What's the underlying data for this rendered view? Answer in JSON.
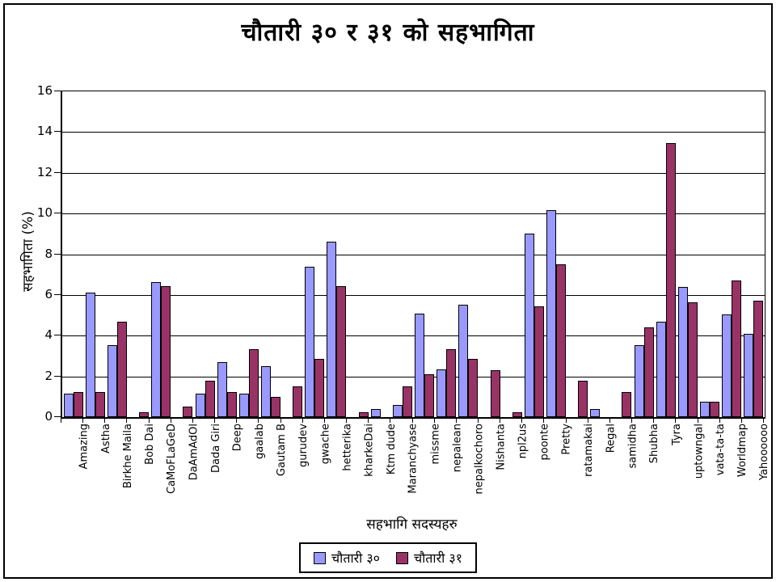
{
  "chart_data": {
    "type": "bar",
    "title": "चौतारी ३० र ३१ को सहभागिता",
    "xlabel": "सहभागि सदस्यहरु",
    "ylabel": "सहभागिता  (%)",
    "ylim": [
      0,
      16
    ],
    "yticks": [
      0,
      2,
      4,
      6,
      8,
      10,
      12,
      14,
      16
    ],
    "grid": true,
    "legend_position": "bottom",
    "categories": [
      "Amazing",
      "Astha",
      "Birkhe Maila",
      "Bob Dai",
      "CaMoFLaGeD",
      "DaAmAdOl",
      "Dada Giri",
      "Deep",
      "gaalab",
      "Gautam B",
      "gurudev",
      "gwache",
      "hetterika",
      "kharkeDai",
      "Ktm dude",
      "Maranchyase",
      "missme",
      "nepalean",
      "nepalkochoro",
      "Nishanta",
      "npl2us",
      "poonte",
      "Pretty",
      "ratamakai",
      "Regal",
      "samidha",
      "Shubha",
      "Tyra",
      "uptowngal",
      "vata-ta-ta",
      "Worldmap",
      "Yahoooooo"
    ],
    "series": [
      {
        "name": "चौतारी ३०",
        "color": "#9999FF",
        "values": [
          1.15,
          6.1,
          3.55,
          0,
          6.65,
          0,
          1.15,
          2.7,
          1.15,
          2.5,
          0,
          7.4,
          8.6,
          0,
          0.4,
          0.6,
          5.1,
          2.35,
          5.5,
          0,
          0,
          9.0,
          10.15,
          0,
          0.4,
          0,
          3.55,
          4.7,
          6.4,
          0.75,
          5.05,
          4.1
        ]
      },
      {
        "name": "चौतारी ३१",
        "color": "#993366",
        "values": [
          1.25,
          1.25,
          4.7,
          0.25,
          6.45,
          0.5,
          1.8,
          1.25,
          3.35,
          1.0,
          1.5,
          2.85,
          6.45,
          0.25,
          0,
          1.5,
          2.1,
          3.35,
          2.85,
          2.3,
          0.25,
          5.45,
          7.5,
          1.8,
          0,
          1.25,
          4.4,
          13.45,
          5.65,
          0.75,
          6.7,
          5.7
        ]
      }
    ]
  }
}
